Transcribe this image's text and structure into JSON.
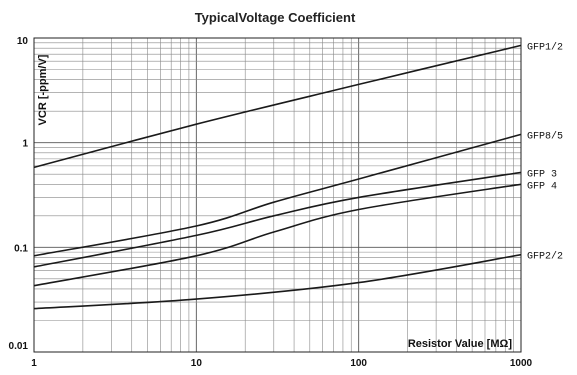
{
  "chart_data": {
    "type": "line",
    "title": "TypicalVoltage Coefficient",
    "xlabel": "Resistor Value [MΩ]",
    "ylabel": "VCR [-ppm/V]",
    "xscale": "log",
    "yscale": "log",
    "xlim": [
      1,
      1000
    ],
    "ylim": [
      0.01,
      10
    ],
    "x_ticks": [
      "1",
      "10",
      "100",
      "1000"
    ],
    "y_ticks": [
      "10",
      "1",
      "0.1",
      "0.01"
    ],
    "grid": true,
    "series": [
      {
        "name": "GFP1/2",
        "x": [
          1,
          10,
          100,
          1000
        ],
        "y": [
          0.58,
          1.5,
          3.6,
          8.5
        ]
      },
      {
        "name": "GFP8/5",
        "x": [
          1,
          10,
          30,
          100,
          1000
        ],
        "y": [
          0.083,
          0.16,
          0.27,
          0.45,
          1.2
        ]
      },
      {
        "name": "GFP 3",
        "x": [
          1,
          10,
          30,
          100,
          1000
        ],
        "y": [
          0.065,
          0.13,
          0.2,
          0.3,
          0.52
        ]
      },
      {
        "name": "GFP 4",
        "x": [
          1,
          10,
          30,
          100,
          1000
        ],
        "y": [
          0.043,
          0.083,
          0.14,
          0.23,
          0.4
        ]
      },
      {
        "name": "GFP2/2",
        "x": [
          1,
          10,
          100,
          1000
        ],
        "y": [
          0.026,
          0.032,
          0.046,
          0.085
        ]
      }
    ]
  }
}
